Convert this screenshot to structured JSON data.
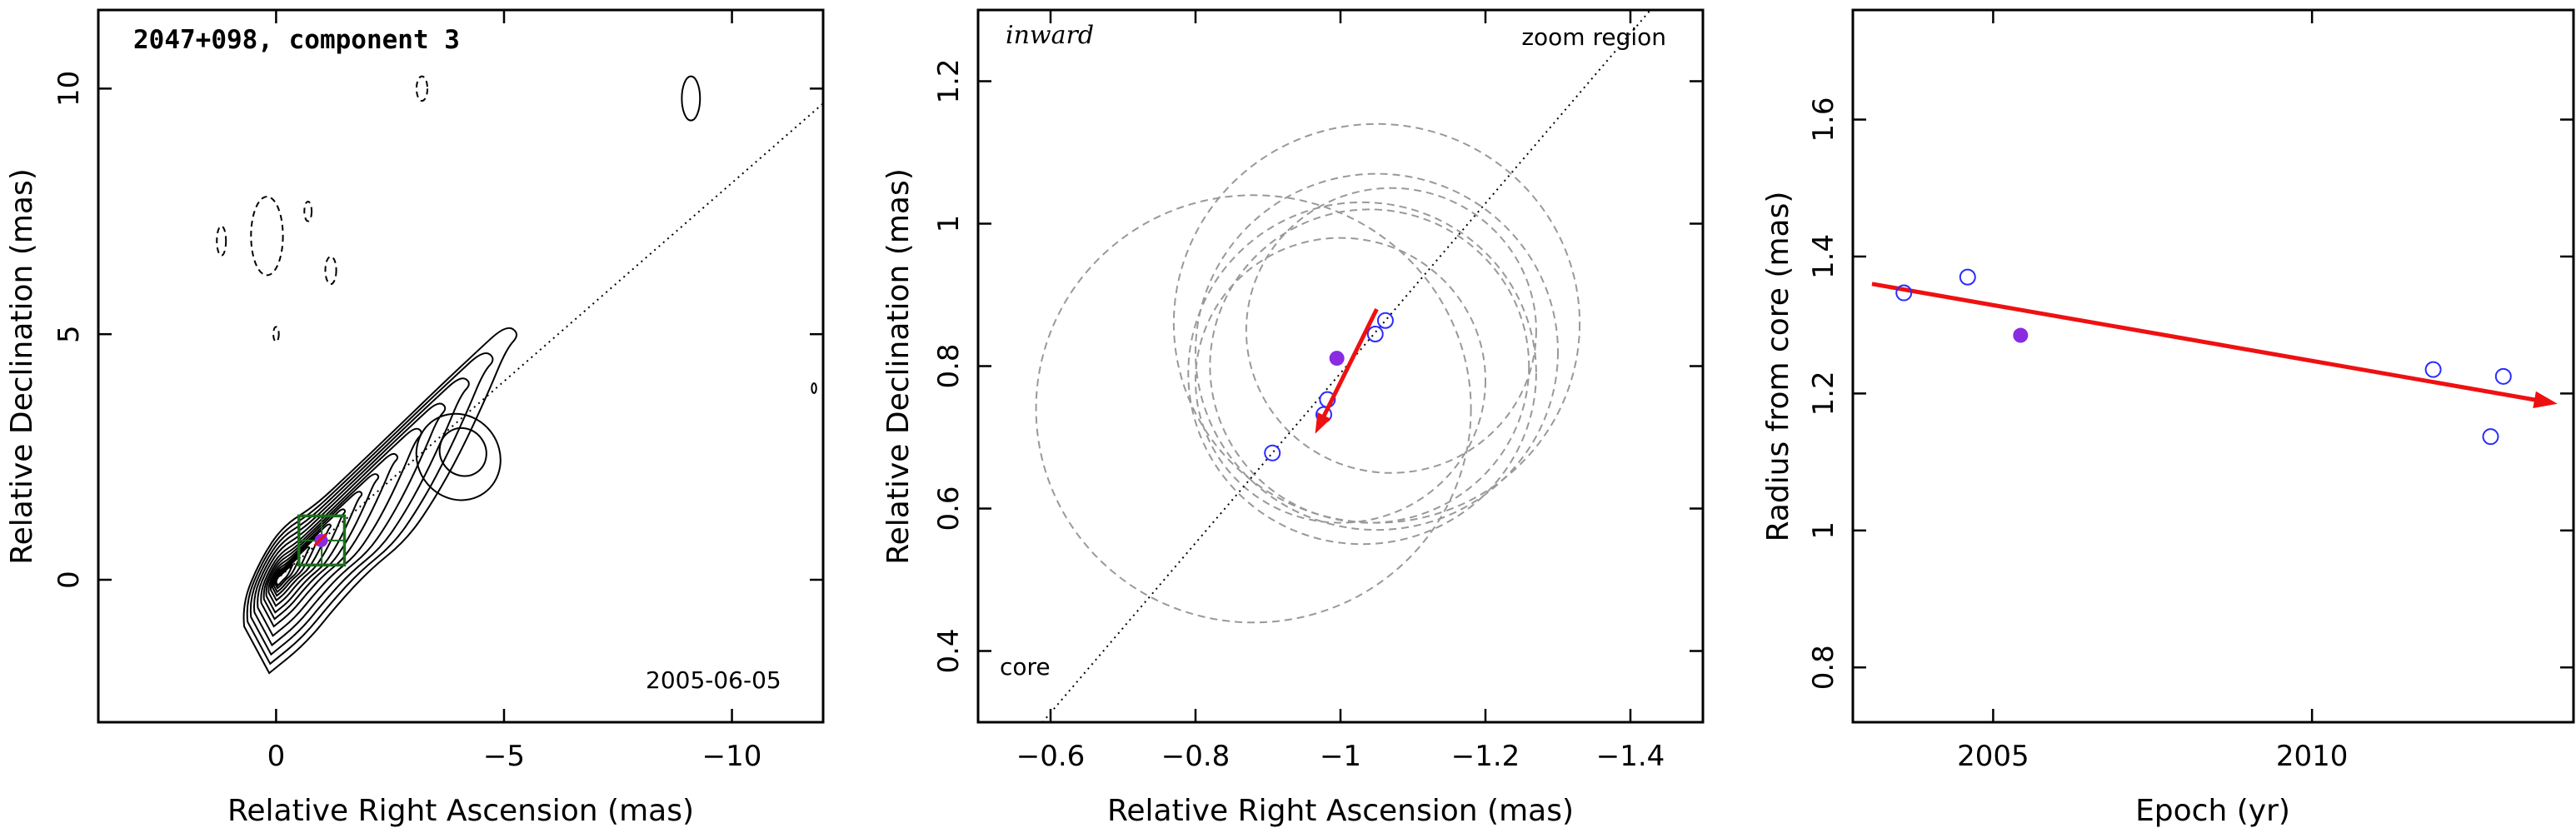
{
  "chart_data": [
    {
      "type": "contour",
      "title": "2047+098, component 3",
      "epoch_label": "2005-06-05",
      "xlabel": "Relative Right Ascension (mas)",
      "ylabel": "Relative Declination (mas)",
      "xlim": [
        3.9,
        -12.0
      ],
      "ylim": [
        -2.9,
        11.6
      ],
      "x_ticks": [
        0,
        -5,
        -10
      ],
      "x_tick_labels": [
        "0",
        "−5",
        "−10"
      ],
      "y_ticks": [
        0,
        5,
        10
      ],
      "y_tick_labels": [
        "0",
        "5",
        "10"
      ],
      "component_position": [
        -0.99,
        0.8
      ],
      "zoom_box": {
        "x": [
          -0.5,
          -1.5
        ],
        "y": [
          0.3,
          1.3
        ]
      },
      "direction_line_through_origin": true,
      "colors": {
        "contour": "#000000",
        "zoom_box": "#1a6e1a",
        "component": "#8a2be2"
      }
    },
    {
      "type": "scatter",
      "corner_label": "inward",
      "region_label": "zoom region",
      "core_label": "core",
      "xlabel": "Relative Right Ascension (mas)",
      "ylabel": "Relative Declination (mas)",
      "xlim": [
        -0.5,
        -1.5
      ],
      "ylim": [
        0.3,
        1.3
      ],
      "x_ticks": [
        -0.6,
        -0.8,
        -1,
        -1.2,
        -1.4
      ],
      "x_tick_labels": [
        "−0.6",
        "−0.8",
        "−1",
        "−1.2",
        "−1.4"
      ],
      "y_ticks": [
        0.4,
        0.6,
        0.8,
        1,
        1.2
      ],
      "y_tick_labels": [
        "0.4",
        "0.6",
        "0.8",
        "1",
        "1.2"
      ],
      "series": [
        {
          "marker": "open-circle",
          "x": [
            -0.906,
            -0.977,
            -0.982,
            -1.048,
            -1.062
          ],
          "y": [
            0.678,
            0.732,
            0.753,
            0.845,
            0.864
          ]
        },
        {
          "marker": "filled-circle",
          "x": [
            -0.995
          ],
          "y": [
            0.811
          ]
        }
      ],
      "beam_circles": [
        {
          "x": -0.88,
          "y": 0.74,
          "r": 0.3
        },
        {
          "x": -1.05,
          "y": 0.86,
          "r": 0.28
        },
        {
          "x": -1.03,
          "y": 0.79,
          "r": 0.24
        },
        {
          "x": -1.05,
          "y": 0.82,
          "r": 0.25
        },
        {
          "x": -1.04,
          "y": 0.8,
          "r": 0.22
        },
        {
          "x": -1.07,
          "y": 0.85,
          "r": 0.2
        },
        {
          "x": -1.0,
          "y": 0.78,
          "r": 0.2
        }
      ],
      "velocity_arrow": {
        "from": [
          -1.05,
          0.88
        ],
        "to": [
          -0.965,
          0.705
        ]
      },
      "colors": {
        "points": "#2b2bff",
        "current": "#8a2be2",
        "arrow": "#ee1111",
        "circles": "#999999"
      }
    },
    {
      "type": "scatter",
      "xlabel": "Epoch (yr)",
      "ylabel": "Radius from core (mas)",
      "xlim": [
        2002.8,
        2014.1
      ],
      "ylim": [
        0.72,
        1.76
      ],
      "x_ticks": [
        2005,
        2010
      ],
      "x_tick_labels": [
        "2005",
        "2010"
      ],
      "y_ticks": [
        0.8,
        1,
        1.2,
        1.4,
        1.6
      ],
      "y_tick_labels": [
        "0.8",
        "1",
        "1.2",
        "1.4",
        "1.6"
      ],
      "series": [
        {
          "marker": "open-circle",
          "x": [
            2003.6,
            2004.6,
            2011.9,
            2012.8,
            2013.0
          ],
          "y": [
            1.347,
            1.37,
            1.235,
            1.137,
            1.225
          ]
        },
        {
          "marker": "filled-circle",
          "x": [
            2005.43
          ],
          "y": [
            1.285
          ]
        }
      ],
      "fit_line": {
        "x": [
          2003.1,
          2013.85
        ],
        "y": [
          1.36,
          1.185
        ]
      },
      "colors": {
        "points": "#2b2bff",
        "current": "#8a2be2",
        "fit": "#ee1111"
      }
    }
  ]
}
